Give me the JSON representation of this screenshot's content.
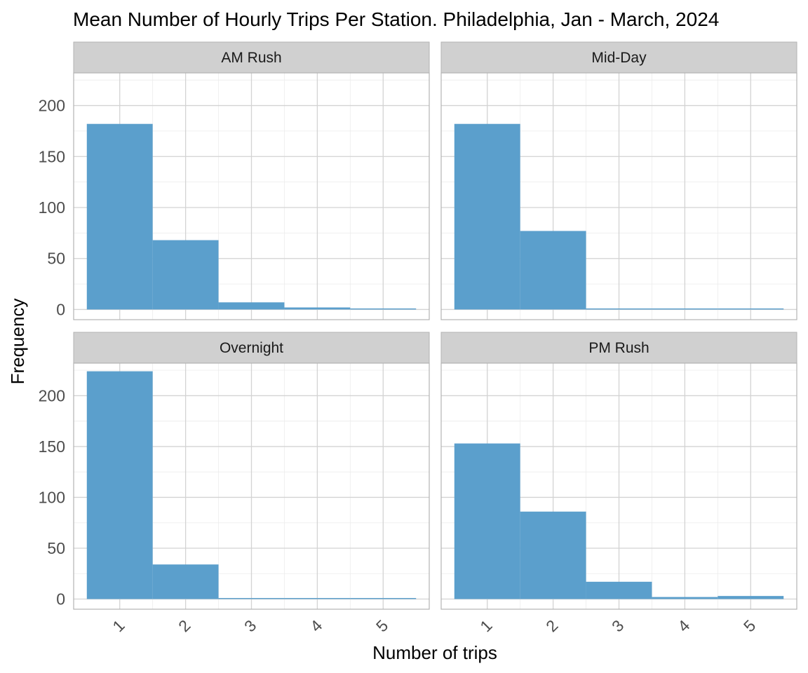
{
  "chart_data": {
    "type": "bar",
    "title": "Mean Number of Hourly Trips Per Station. Philadelphia, Jan - March, 2024",
    "xlabel": "Number of trips",
    "ylabel": "Frequency",
    "x_ticks": [
      "1",
      "2",
      "3",
      "4",
      "5"
    ],
    "y_ticks": [
      "0",
      "50",
      "100",
      "150",
      "200"
    ],
    "xlim": [
      0.3,
      5.7
    ],
    "ylim": [
      -10,
      232
    ],
    "grid": true,
    "bar_color": "#5b9fcc",
    "panels": [
      {
        "name": "AM Rush",
        "x": [
          1,
          2,
          3,
          4,
          5
        ],
        "values": [
          182,
          68,
          7,
          2,
          1
        ]
      },
      {
        "name": "Mid-Day",
        "x": [
          1,
          2,
          3,
          4,
          5
        ],
        "values": [
          182,
          77,
          1,
          1,
          1
        ]
      },
      {
        "name": "Overnight",
        "x": [
          1,
          2,
          3,
          4,
          5
        ],
        "values": [
          224,
          34,
          1,
          1,
          1
        ]
      },
      {
        "name": "PM Rush",
        "x": [
          1,
          2,
          3,
          4,
          5
        ],
        "values": [
          153,
          86,
          17,
          2,
          3
        ]
      }
    ]
  }
}
